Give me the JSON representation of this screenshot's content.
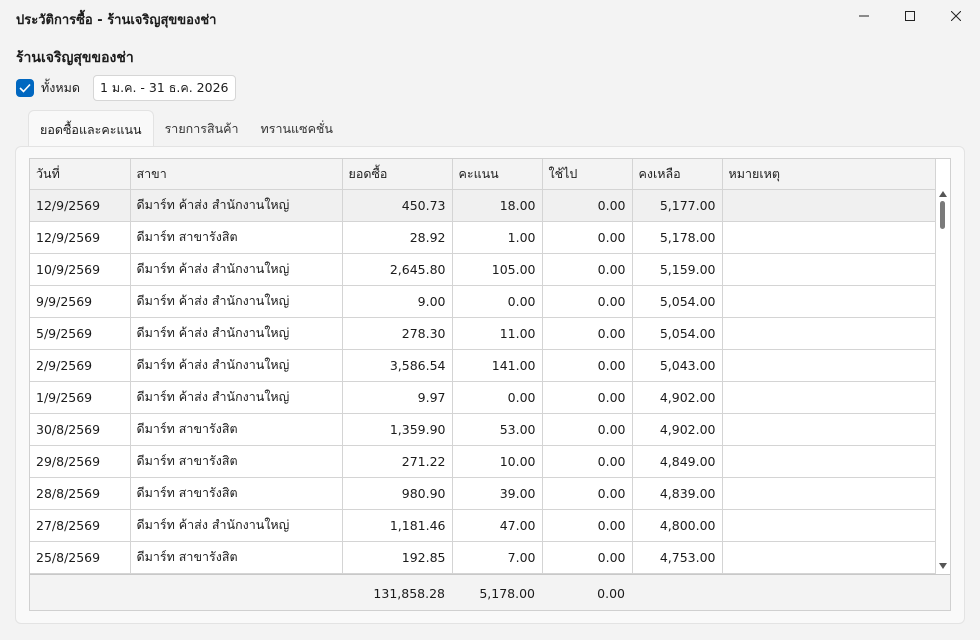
{
  "window": {
    "title": "ประวัติการซื้อ - ร้านเจริญสุขของช่า"
  },
  "shop_name": "ร้านเจริญสุขของช่า",
  "filter": {
    "all_label": "ทั้งหมด",
    "all_checked": true,
    "date_range": "1 ม.ค. - 31 ธ.ค. 2026"
  },
  "tabs": [
    {
      "label": "ยอดซื้อและคะแนน",
      "active": true
    },
    {
      "label": "รายการสินค้า",
      "active": false
    },
    {
      "label": "ทรานแซคชั่น",
      "active": false
    }
  ],
  "table": {
    "columns": [
      "วันที่",
      "สาขา",
      "ยอดซื้อ",
      "คะแนน",
      "ใช้ไป",
      "คงเหลือ",
      "หมายเหตุ"
    ],
    "rows": [
      {
        "date": "12/9/2569",
        "branch": "ดีมาร์ท ค้าส่ง สำนักงานใหญ่",
        "amount": "450.73",
        "points": "18.00",
        "used": "0.00",
        "balance": "5,177.00",
        "note": ""
      },
      {
        "date": "12/9/2569",
        "branch": "ดีมาร์ท สาขารังสิต",
        "amount": "28.92",
        "points": "1.00",
        "used": "0.00",
        "balance": "5,178.00",
        "note": ""
      },
      {
        "date": "10/9/2569",
        "branch": "ดีมาร์ท ค้าส่ง สำนักงานใหญ่",
        "amount": "2,645.80",
        "points": "105.00",
        "used": "0.00",
        "balance": "5,159.00",
        "note": ""
      },
      {
        "date": "9/9/2569",
        "branch": "ดีมาร์ท ค้าส่ง สำนักงานใหญ่",
        "amount": "9.00",
        "points": "0.00",
        "used": "0.00",
        "balance": "5,054.00",
        "note": ""
      },
      {
        "date": "5/9/2569",
        "branch": "ดีมาร์ท ค้าส่ง สำนักงานใหญ่",
        "amount": "278.30",
        "points": "11.00",
        "used": "0.00",
        "balance": "5,054.00",
        "note": ""
      },
      {
        "date": "2/9/2569",
        "branch": "ดีมาร์ท ค้าส่ง สำนักงานใหญ่",
        "amount": "3,586.54",
        "points": "141.00",
        "used": "0.00",
        "balance": "5,043.00",
        "note": ""
      },
      {
        "date": "1/9/2569",
        "branch": "ดีมาร์ท ค้าส่ง สำนักงานใหญ่",
        "amount": "9.97",
        "points": "0.00",
        "used": "0.00",
        "balance": "4,902.00",
        "note": ""
      },
      {
        "date": "30/8/2569",
        "branch": "ดีมาร์ท สาขารังสิต",
        "amount": "1,359.90",
        "points": "53.00",
        "used": "0.00",
        "balance": "4,902.00",
        "note": ""
      },
      {
        "date": "29/8/2569",
        "branch": "ดีมาร์ท สาขารังสิต",
        "amount": "271.22",
        "points": "10.00",
        "used": "0.00",
        "balance": "4,849.00",
        "note": ""
      },
      {
        "date": "28/8/2569",
        "branch": "ดีมาร์ท สาขารังสิต",
        "amount": "980.90",
        "points": "39.00",
        "used": "0.00",
        "balance": "4,839.00",
        "note": ""
      },
      {
        "date": "27/8/2569",
        "branch": "ดีมาร์ท ค้าส่ง สำนักงานใหญ่",
        "amount": "1,181.46",
        "points": "47.00",
        "used": "0.00",
        "balance": "4,800.00",
        "note": ""
      },
      {
        "date": "25/8/2569",
        "branch": "ดีมาร์ท สาขารังสิต",
        "amount": "192.85",
        "points": "7.00",
        "used": "0.00",
        "balance": "4,753.00",
        "note": ""
      }
    ],
    "totals": {
      "amount": "131,858.28",
      "points": "5,178.00",
      "used": "0.00"
    }
  },
  "colors": {
    "accent": "#0067c0",
    "selected_row": "#f0f0f0"
  }
}
